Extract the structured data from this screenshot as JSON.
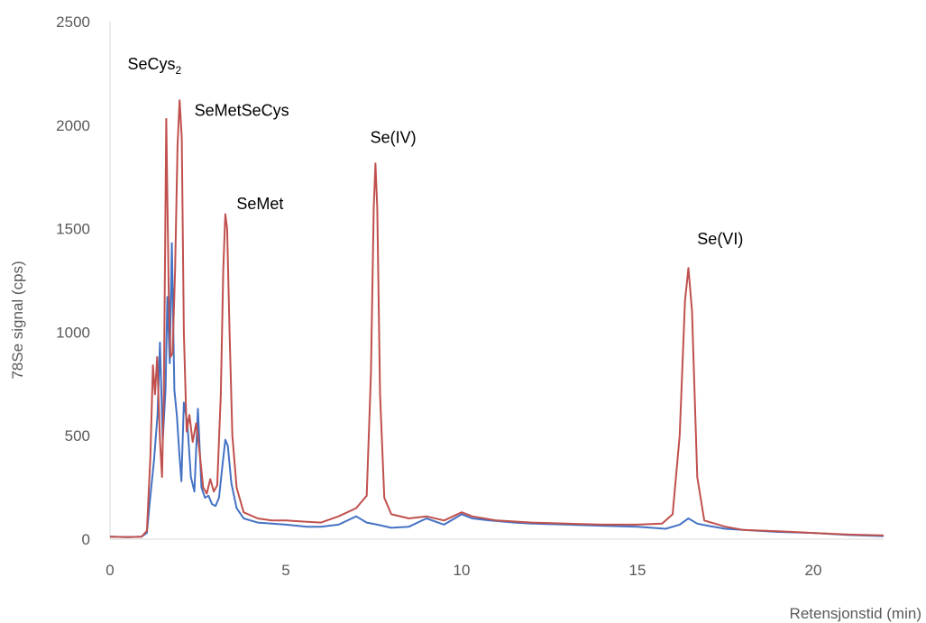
{
  "chart_data": {
    "type": "line",
    "title": "",
    "xlabel": "Retensjonstid (min)",
    "ylabel": "78Se signal (cps)",
    "xlim": [
      0,
      22
    ],
    "ylim": [
      0,
      2500
    ],
    "x_ticks": [
      "0",
      "5",
      "10",
      "15",
      "20"
    ],
    "y_ticks": [
      "0",
      "500",
      "1000",
      "1500",
      "2000",
      "2500"
    ],
    "grid": false,
    "legend": "none",
    "annotations": [
      {
        "base": "SeCys",
        "sub": "2",
        "x": 0.5,
        "y": 2270
      },
      {
        "base": "SeMetSeCys",
        "sub": "",
        "x": 2.4,
        "y": 2045
      },
      {
        "base": "SeMet",
        "sub": "",
        "x": 3.6,
        "y": 1595
      },
      {
        "base": "Se(IV)",
        "sub": "",
        "x": 7.4,
        "y": 1915
      },
      {
        "base": "Se(VI)",
        "sub": "",
        "x": 16.7,
        "y": 1425
      }
    ],
    "series": [
      {
        "color": "#4472C4",
        "points": [
          [
            0,
            12
          ],
          [
            0.5,
            10
          ],
          [
            0.9,
            12
          ],
          [
            1.05,
            30
          ],
          [
            1.15,
            210
          ],
          [
            1.25,
            380
          ],
          [
            1.35,
            600
          ],
          [
            1.42,
            950
          ],
          [
            1.5,
            480
          ],
          [
            1.58,
            720
          ],
          [
            1.63,
            1170
          ],
          [
            1.7,
            850
          ],
          [
            1.76,
            1430
          ],
          [
            1.83,
            720
          ],
          [
            1.9,
            600
          ],
          [
            1.97,
            420
          ],
          [
            2.03,
            280
          ],
          [
            2.1,
            660
          ],
          [
            2.2,
            560
          ],
          [
            2.3,
            300
          ],
          [
            2.4,
            230
          ],
          [
            2.5,
            630
          ],
          [
            2.6,
            250
          ],
          [
            2.7,
            200
          ],
          [
            2.8,
            210
          ],
          [
            2.9,
            170
          ],
          [
            3.0,
            160
          ],
          [
            3.1,
            200
          ],
          [
            3.2,
            360
          ],
          [
            3.28,
            480
          ],
          [
            3.35,
            450
          ],
          [
            3.45,
            270
          ],
          [
            3.6,
            150
          ],
          [
            3.8,
            100
          ],
          [
            4.2,
            80
          ],
          [
            4.6,
            75
          ],
          [
            5,
            70
          ],
          [
            5.6,
            60
          ],
          [
            6,
            60
          ],
          [
            6.5,
            70
          ],
          [
            7,
            110
          ],
          [
            7.3,
            80
          ],
          [
            7.6,
            70
          ],
          [
            8,
            55
          ],
          [
            8.5,
            60
          ],
          [
            9,
            100
          ],
          [
            9.5,
            70
          ],
          [
            10,
            120
          ],
          [
            10.3,
            100
          ],
          [
            10.8,
            90
          ],
          [
            11.5,
            80
          ],
          [
            12,
            75
          ],
          [
            13,
            70
          ],
          [
            14,
            65
          ],
          [
            15,
            60
          ],
          [
            15.8,
            50
          ],
          [
            16.2,
            70
          ],
          [
            16.45,
            100
          ],
          [
            16.7,
            75
          ],
          [
            17,
            65
          ],
          [
            17.5,
            50
          ],
          [
            18,
            45
          ],
          [
            19,
            35
          ],
          [
            20,
            30
          ],
          [
            21,
            20
          ],
          [
            22,
            15
          ]
        ]
      },
      {
        "color": "#C0504D",
        "points": [
          [
            0,
            12
          ],
          [
            0.5,
            10
          ],
          [
            0.9,
            12
          ],
          [
            1.05,
            40
          ],
          [
            1.15,
            400
          ],
          [
            1.22,
            840
          ],
          [
            1.28,
            700
          ],
          [
            1.34,
            880
          ],
          [
            1.42,
            480
          ],
          [
            1.48,
            300
          ],
          [
            1.53,
            700
          ],
          [
            1.6,
            2030
          ],
          [
            1.67,
            1200
          ],
          [
            1.72,
            880
          ],
          [
            1.78,
            900
          ],
          [
            1.85,
            1300
          ],
          [
            1.92,
            1900
          ],
          [
            1.98,
            2120
          ],
          [
            2.04,
            1940
          ],
          [
            2.1,
            1000
          ],
          [
            2.18,
            520
          ],
          [
            2.26,
            600
          ],
          [
            2.35,
            470
          ],
          [
            2.45,
            560
          ],
          [
            2.55,
            420
          ],
          [
            2.65,
            250
          ],
          [
            2.75,
            220
          ],
          [
            2.85,
            290
          ],
          [
            2.95,
            230
          ],
          [
            3.05,
            260
          ],
          [
            3.15,
            700
          ],
          [
            3.22,
            1300
          ],
          [
            3.28,
            1570
          ],
          [
            3.33,
            1500
          ],
          [
            3.4,
            1000
          ],
          [
            3.48,
            500
          ],
          [
            3.6,
            250
          ],
          [
            3.8,
            130
          ],
          [
            4.2,
            100
          ],
          [
            4.6,
            90
          ],
          [
            5,
            90
          ],
          [
            5.5,
            85
          ],
          [
            6,
            80
          ],
          [
            6.5,
            110
          ],
          [
            7,
            150
          ],
          [
            7.2,
            190
          ],
          [
            7.3,
            210
          ],
          [
            7.42,
            800
          ],
          [
            7.5,
            1600
          ],
          [
            7.55,
            1815
          ],
          [
            7.6,
            1600
          ],
          [
            7.68,
            700
          ],
          [
            7.8,
            200
          ],
          [
            8,
            120
          ],
          [
            8.5,
            100
          ],
          [
            9,
            110
          ],
          [
            9.5,
            90
          ],
          [
            10,
            130
          ],
          [
            10.3,
            110
          ],
          [
            11,
            90
          ],
          [
            12,
            80
          ],
          [
            13,
            75
          ],
          [
            14,
            70
          ],
          [
            15,
            70
          ],
          [
            15.7,
            75
          ],
          [
            16,
            120
          ],
          [
            16.2,
            500
          ],
          [
            16.35,
            1150
          ],
          [
            16.45,
            1310
          ],
          [
            16.55,
            1100
          ],
          [
            16.7,
            300
          ],
          [
            16.9,
            90
          ],
          [
            17.5,
            60
          ],
          [
            18,
            45
          ],
          [
            19,
            38
          ],
          [
            20,
            30
          ],
          [
            21,
            22
          ],
          [
            22,
            18
          ]
        ]
      }
    ]
  }
}
